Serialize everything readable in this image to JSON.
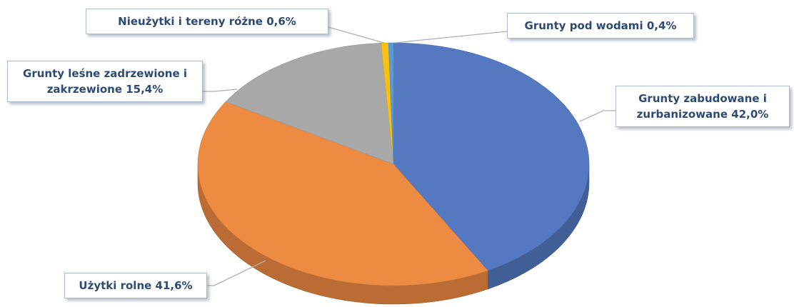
{
  "chart_data": {
    "type": "pie",
    "categories": [
      "Grunty zabudowane i zurbanizowane",
      "Użytki rolne",
      "Grunty leśne zadrzewione i zakrzewione",
      "Nieużytki i tereny różne",
      "Grunty pod wodami"
    ],
    "values": [
      42.0,
      41.6,
      15.4,
      0.6,
      0.4
    ],
    "value_labels": [
      "42,0%",
      "41,6%",
      "15,4%",
      "0,6%",
      "0,4%"
    ],
    "colors": [
      "#5479c1",
      "#ee8b43",
      "#a8a8a8",
      "#f8c013",
      "#5b9bd5"
    ]
  }
}
